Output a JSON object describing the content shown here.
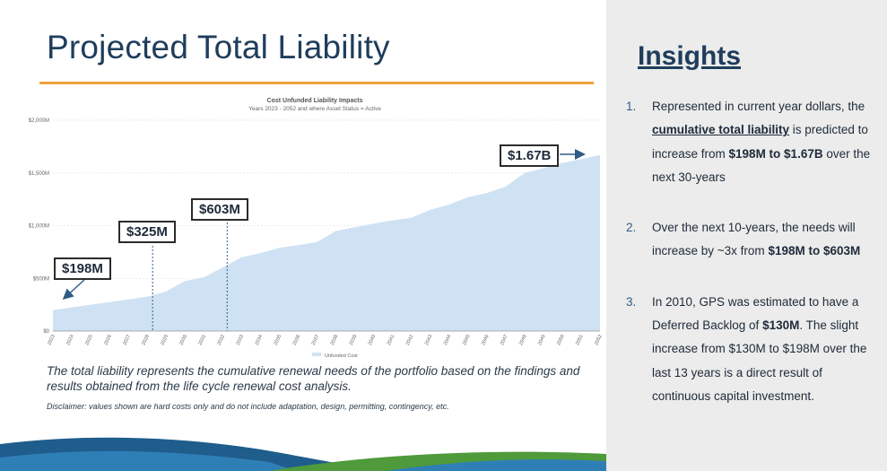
{
  "slide": {
    "title": "Projected Total Liability",
    "caption": "The total liability represents the cumulative renewal needs of the portfolio based on the findings and results obtained from the life cycle renewal cost analysis.",
    "disclaimer": "Disclaimer: values shown are hard costs only and do not include adaptation, design, permitting, contingency, etc."
  },
  "callouts": {
    "c198": "$198M",
    "c325": "$325M",
    "c603": "$603M",
    "c167": "$1.67B"
  },
  "insights": {
    "title": "Insights",
    "items": [
      {
        "num": "1.",
        "p1": "Represented in current year dollars, the ",
        "b1": "cumulative total liability",
        "p2": " is predicted to increase from ",
        "b2": "$198M to $1.67B",
        "p3": " over the next 30-years"
      },
      {
        "num": "2.",
        "p1": "Over the next 10-years, the needs will increase by ~3x from ",
        "b1": "$198M to $603M"
      },
      {
        "num": "3.",
        "p1": "In 2010, GPS was estimated to have a Deferred Backlog of ",
        "b1": "$130M",
        "p2": ". The slight increase from $130M to $198M over the last 13 years is a direct result of continuous capital investment."
      }
    ]
  },
  "colors": {
    "area": "#cfe2f3",
    "title": "#1f3d5c",
    "accent_rule": "#f2a33a",
    "arrow": "#2f5c86"
  },
  "chart_data": {
    "type": "area",
    "title": "Cost Unfunded Liability Impacts",
    "subtitle": "Years 2023 - 2052 and where Asset Status = Active",
    "legend": [
      "Unfunded Cost"
    ],
    "legend_position": "bottom",
    "grid": true,
    "ylim": [
      0,
      2000
    ],
    "y_ticks": [
      "$0",
      "$500M",
      "$1,000M",
      "$1,500M",
      "$2,000M"
    ],
    "y_tick_values": [
      0,
      500,
      1000,
      1500,
      2000
    ],
    "x": [
      "2023",
      "2024",
      "2025",
      "2026",
      "2027",
      "2028",
      "2029",
      "2030",
      "2031",
      "2032",
      "2033",
      "2034",
      "2035",
      "2036",
      "2037",
      "2038",
      "2039",
      "2040",
      "2041",
      "2042",
      "2043",
      "2044",
      "2045",
      "2046",
      "2047",
      "2048",
      "2049",
      "2050",
      "2051",
      "2052"
    ],
    "series": [
      {
        "name": "Unfunded Cost",
        "values": [
          198,
          225,
          250,
          275,
          300,
          325,
          375,
          475,
          510,
          603,
          700,
          740,
          790,
          815,
          845,
          950,
          985,
          1020,
          1050,
          1075,
          1150,
          1200,
          1270,
          1310,
          1370,
          1500,
          1545,
          1595,
          1630,
          1670
        ]
      }
    ]
  }
}
